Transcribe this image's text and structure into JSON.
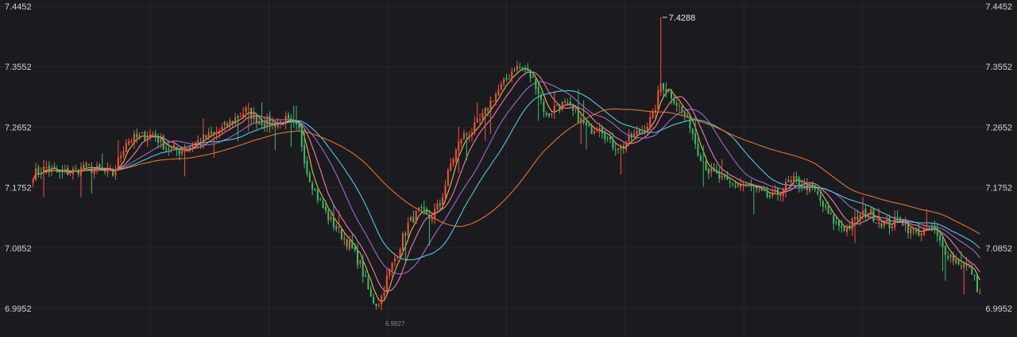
{
  "chart_data": {
    "type": "candlestick",
    "y_ticks": [
      "7.4452",
      "7.3552",
      "7.2652",
      "7.1752",
      "7.0852",
      "6.9952"
    ],
    "y_tick_values": [
      7.4452,
      7.3552,
      7.2652,
      7.1752,
      7.0852,
      6.9952
    ],
    "ylim": [
      6.9952,
      7.4452
    ],
    "high_annotation": {
      "label": "7.4288",
      "value": 7.4288
    },
    "low_annotation": {
      "label": "6.9927"
    },
    "grid": true,
    "price_path": [
      [
        0,
        7.195
      ],
      [
        5,
        7.205
      ],
      [
        10,
        7.195
      ],
      [
        15,
        7.2
      ],
      [
        20,
        7.205
      ],
      [
        25,
        7.2
      ],
      [
        30,
        7.195
      ],
      [
        35,
        7.245
      ],
      [
        40,
        7.25
      ],
      [
        45,
        7.255
      ],
      [
        50,
        7.235
      ],
      [
        55,
        7.23
      ],
      [
        60,
        7.24
      ],
      [
        65,
        7.25
      ],
      [
        70,
        7.26
      ],
      [
        75,
        7.275
      ],
      [
        80,
        7.29
      ],
      [
        85,
        7.275
      ],
      [
        90,
        7.27
      ],
      [
        95,
        7.275
      ],
      [
        100,
        7.26
      ],
      [
        103,
        7.2
      ],
      [
        107,
        7.16
      ],
      [
        111,
        7.13
      ],
      [
        115,
        7.11
      ],
      [
        119,
        7.09
      ],
      [
        123,
        7.06
      ],
      [
        127,
        7.01
      ],
      [
        130,
        7.0
      ],
      [
        133,
        7.04
      ],
      [
        137,
        7.08
      ],
      [
        141,
        7.12
      ],
      [
        145,
        7.14
      ],
      [
        149,
        7.13
      ],
      [
        153,
        7.15
      ],
      [
        157,
        7.21
      ],
      [
        161,
        7.25
      ],
      [
        165,
        7.26
      ],
      [
        169,
        7.28
      ],
      [
        173,
        7.31
      ],
      [
        177,
        7.33
      ],
      [
        181,
        7.355
      ],
      [
        185,
        7.35
      ],
      [
        189,
        7.33
      ],
      [
        193,
        7.28
      ],
      [
        197,
        7.3
      ],
      [
        201,
        7.295
      ],
      [
        205,
        7.28
      ],
      [
        209,
        7.26
      ],
      [
        213,
        7.27
      ],
      [
        217,
        7.24
      ],
      [
        221,
        7.235
      ],
      [
        225,
        7.25
      ],
      [
        229,
        7.26
      ],
      [
        233,
        7.28
      ],
      [
        236,
        7.33
      ],
      [
        239,
        7.32
      ],
      [
        243,
        7.295
      ],
      [
        247,
        7.27
      ],
      [
        250,
        7.23
      ],
      [
        254,
        7.2
      ],
      [
        258,
        7.19
      ],
      [
        262,
        7.18
      ],
      [
        266,
        7.18
      ],
      [
        270,
        7.175
      ],
      [
        274,
        7.165
      ],
      [
        278,
        7.16
      ],
      [
        282,
        7.175
      ],
      [
        286,
        7.185
      ],
      [
        290,
        7.18
      ],
      [
        294,
        7.17
      ],
      [
        298,
        7.14
      ],
      [
        302,
        7.12
      ],
      [
        306,
        7.115
      ],
      [
        310,
        7.13
      ],
      [
        314,
        7.14
      ],
      [
        318,
        7.125
      ],
      [
        322,
        7.12
      ],
      [
        326,
        7.13
      ],
      [
        330,
        7.11
      ],
      [
        334,
        7.11
      ],
      [
        338,
        7.115
      ],
      [
        342,
        7.085
      ],
      [
        346,
        7.07
      ],
      [
        350,
        7.06
      ],
      [
        353,
        7.05
      ],
      [
        356,
        7.015
      ]
    ],
    "high_index": 236,
    "low_index": 130,
    "moving_averages": [
      {
        "period": 5,
        "color": "#f2c14e"
      },
      {
        "period": 10,
        "color": "#ff7fb6"
      },
      {
        "period": 20,
        "color": "#a86bd6"
      },
      {
        "period": 30,
        "color": "#58d0e8"
      },
      {
        "period": 60,
        "color": "#f0772e"
      }
    ],
    "colors": {
      "up": "#f0553c",
      "down": "#3dbb6b",
      "background": "#1b1b1f",
      "grid": "#26272b",
      "tick_text": "#cfd3da"
    }
  }
}
